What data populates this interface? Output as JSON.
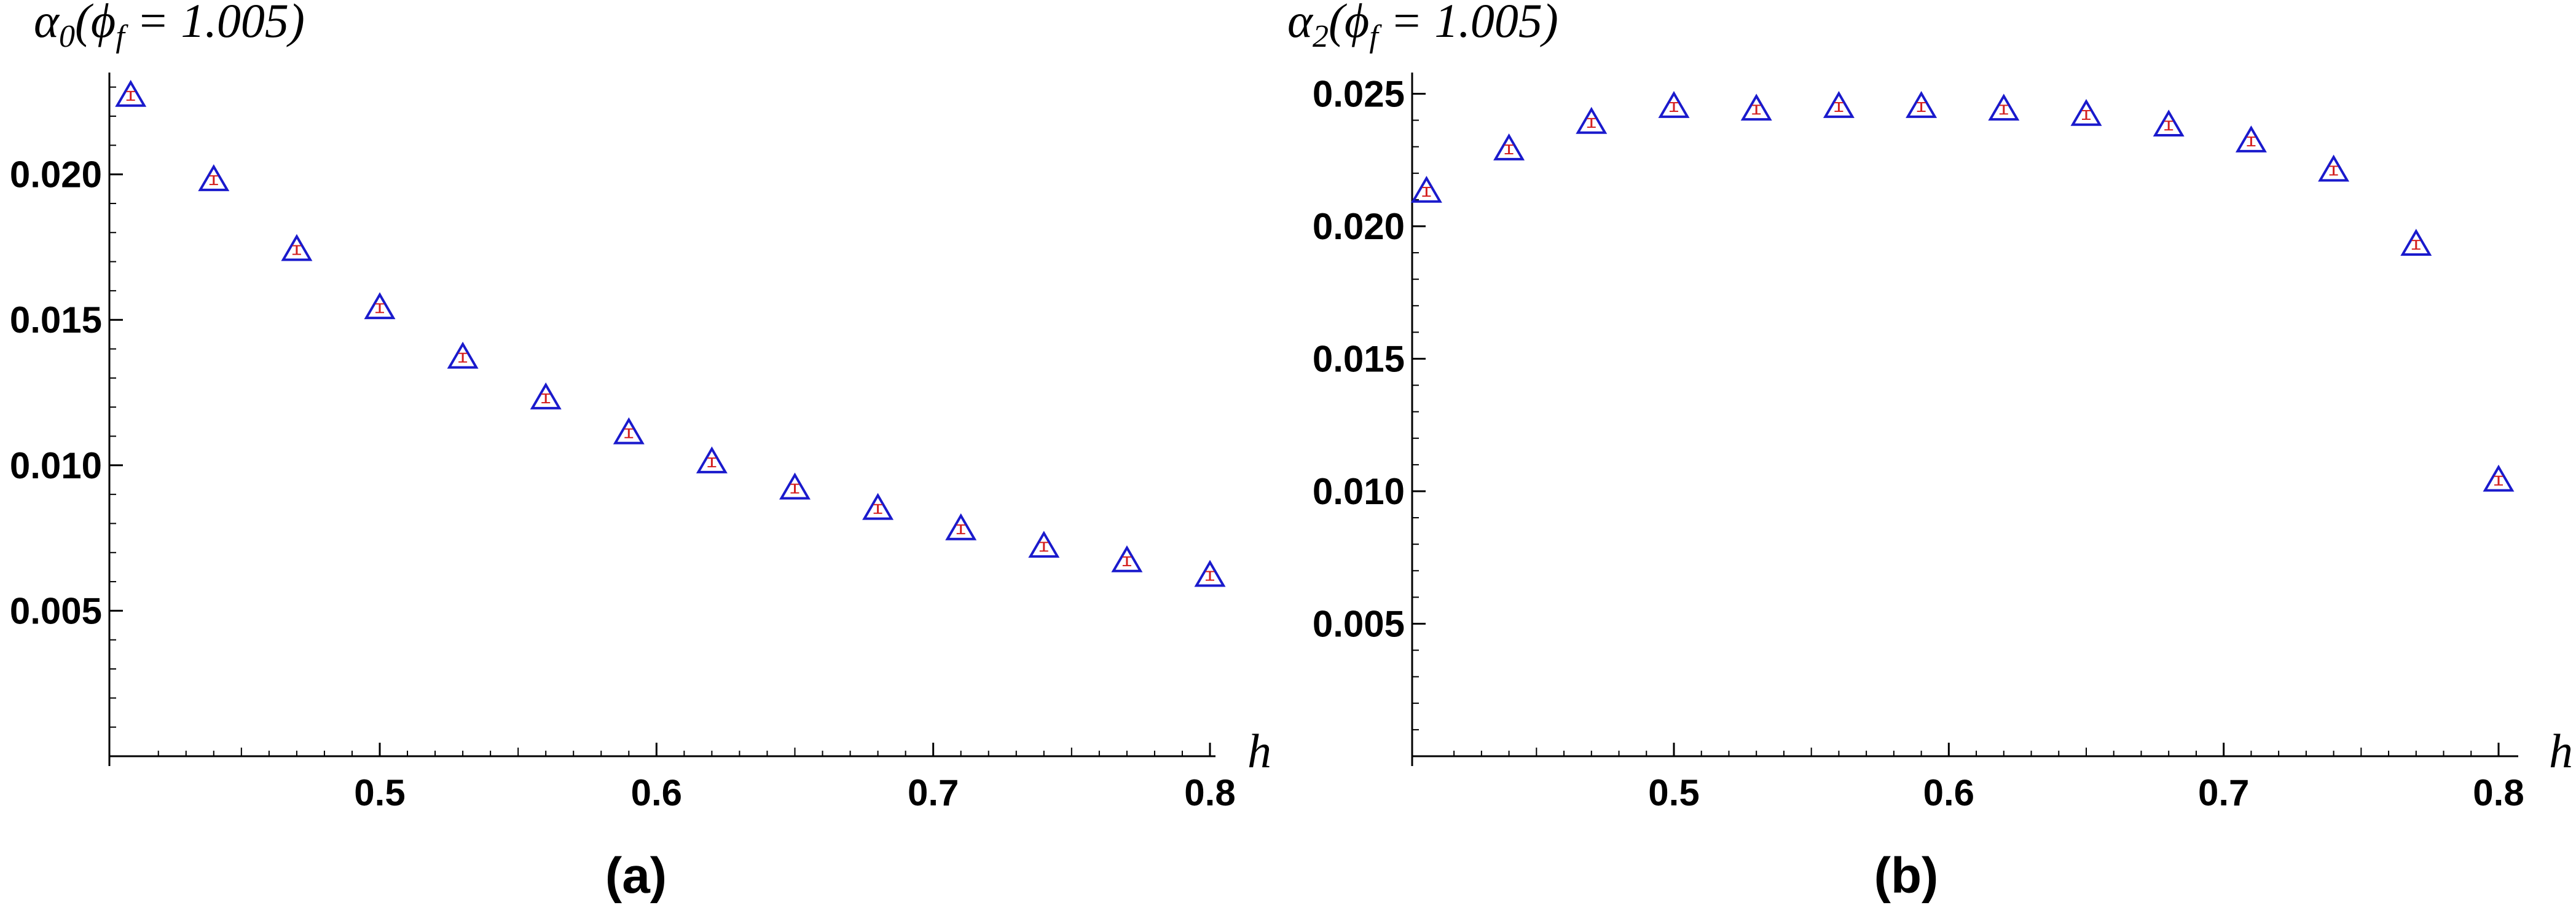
{
  "chart_data": [
    {
      "type": "scatter",
      "panel": "(a)",
      "ylabel": "α0(ϕf = 1.005)",
      "xlabel": "h",
      "xlim": [
        0.41,
        0.8
      ],
      "ylim": [
        0.0,
        0.0235
      ],
      "xticks": [
        0.5,
        0.6,
        0.7,
        0.8
      ],
      "yticks": [
        0.005,
        0.01,
        0.015,
        0.02
      ],
      "xticklabels": [
        "0.5",
        "0.6",
        "0.7",
        "0.8"
      ],
      "yticklabels": [
        "0.005",
        "0.010",
        "0.015",
        "0.020"
      ],
      "marker": "triangle",
      "marker_color": "#1a1acc",
      "errorbar_color": "#d42020",
      "x": [
        0.41,
        0.44,
        0.47,
        0.5,
        0.53,
        0.56,
        0.59,
        0.62,
        0.65,
        0.68,
        0.71,
        0.74,
        0.77,
        0.8
      ],
      "y": [
        0.0227,
        0.0198,
        0.0174,
        0.0154,
        0.0137,
        0.0123,
        0.0111,
        0.0101,
        0.0092,
        0.0085,
        0.0078,
        0.0072,
        0.0067,
        0.0062
      ]
    },
    {
      "type": "scatter",
      "panel": "(b)",
      "ylabel": "α2(ϕf = 1.005)",
      "xlabel": "h",
      "xlim": [
        0.41,
        0.8
      ],
      "ylim": [
        0.0,
        0.0258
      ],
      "xticks": [
        0.5,
        0.6,
        0.7,
        0.8
      ],
      "yticks": [
        0.005,
        0.01,
        0.015,
        0.02,
        0.025
      ],
      "xticklabels": [
        "0.5",
        "0.6",
        "0.7",
        "0.8"
      ],
      "yticklabels": [
        "0.005",
        "0.010",
        "0.015",
        "0.020",
        "0.025"
      ],
      "marker": "triangle",
      "marker_color": "#1a1acc",
      "errorbar_color": "#d42020",
      "x": [
        0.41,
        0.44,
        0.47,
        0.5,
        0.53,
        0.56,
        0.59,
        0.62,
        0.65,
        0.68,
        0.71,
        0.74,
        0.77,
        0.8
      ],
      "y": [
        0.0213,
        0.0229,
        0.0239,
        0.0245,
        0.0244,
        0.0245,
        0.0245,
        0.0244,
        0.0242,
        0.0238,
        0.0232,
        0.0221,
        0.0193,
        0.0104
      ]
    }
  ]
}
